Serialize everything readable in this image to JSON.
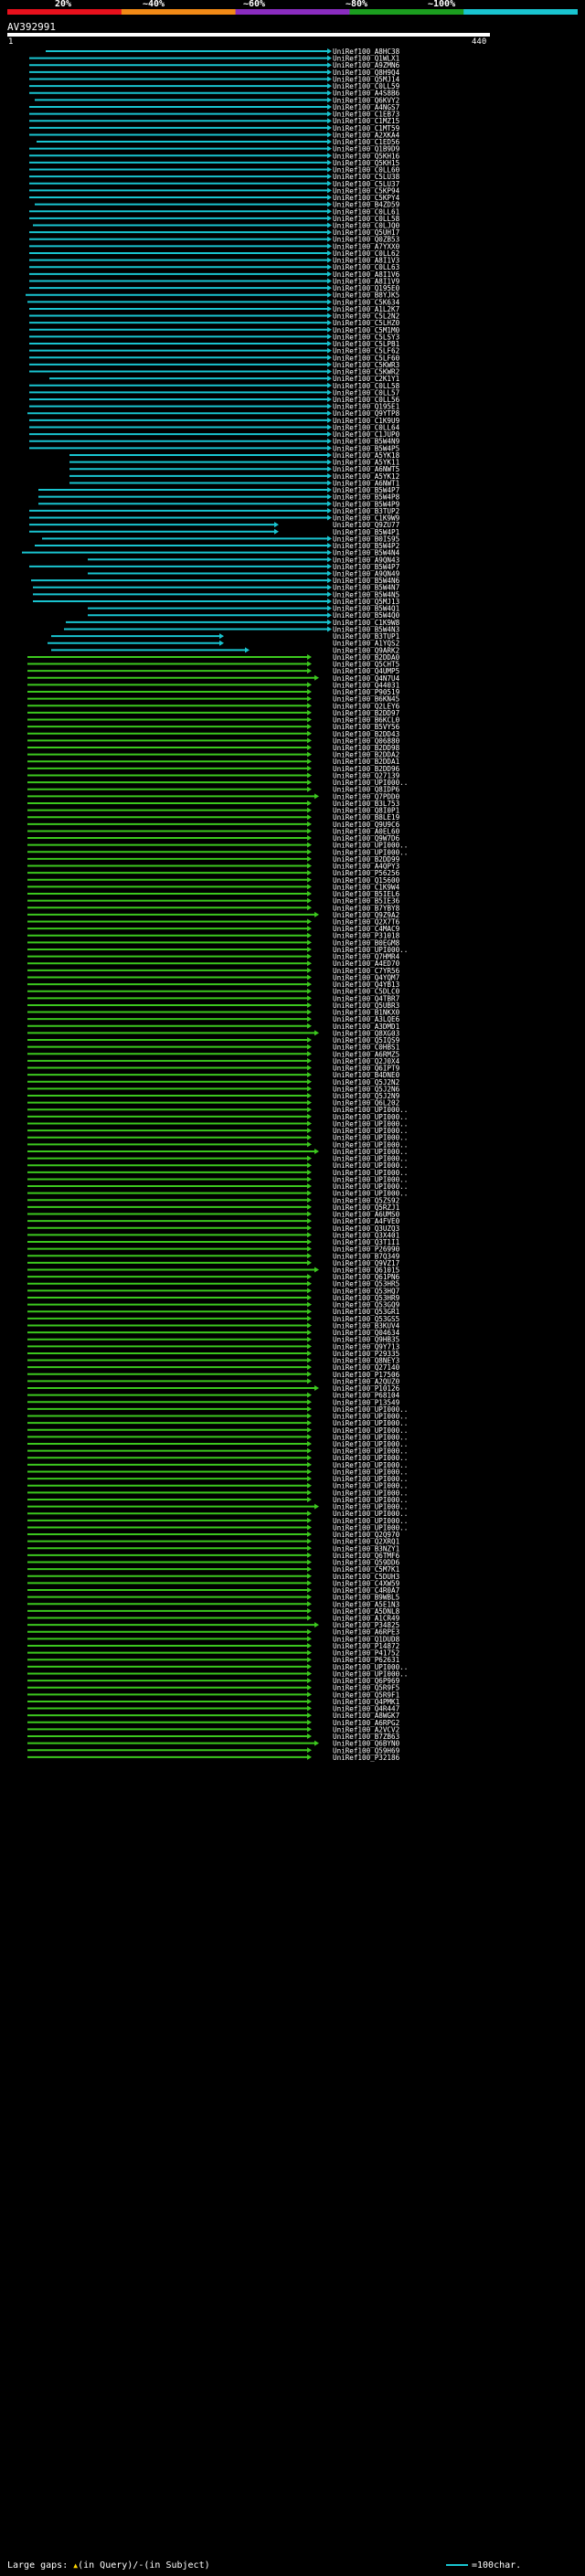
{
  "legend": {
    "labels": [
      "20%",
      "~40%",
      "~60%",
      "~80%",
      "~100%"
    ],
    "colors": [
      "#e8101c",
      "#f28a16",
      "#8a2cc0",
      "#1b9e1f",
      "#19c4d0"
    ]
  },
  "query": {
    "id": "AV392991",
    "start": "1",
    "end": "440"
  },
  "hit_colors": {
    "cyan": "#19c4d0",
    "green": "#3cc81e"
  },
  "hit_names": [
    "UniRef100_A8HC38",
    "UniRef100_Q1WLX1",
    "UniRef100_A9ZMN6",
    "UniRef100_Q8H9Q4",
    "UniRef100_Q5MJ14",
    "UniRef100_C0LL59",
    "UniRef100_A4S8B6",
    "UniRef100_Q6KVY2",
    "UniRef100_A4NGS7",
    "UniRef100_C1EB73",
    "UniRef100_C1MZ15",
    "UniRef100_C1MT59",
    "UniRef100_A2XKA4",
    "UniRef100_C1ED56",
    "UniRef100_Q1B9D9",
    "UniRef100_Q5KH16",
    "UniRef100_Q5KH15",
    "UniRef100_C0LL60",
    "UniRef100_C5LU38",
    "UniRef100_C5LU37",
    "UniRef100_C5KP94",
    "UniRef100_C5KPY4",
    "UniRef100_B4ZD59",
    "UniRef100_C0LL61",
    "UniRef100_C0LL58",
    "UniRef100_C0LJQ0",
    "UniRef100_Q5UH17",
    "UniRef100_Q0ZB53",
    "UniRef100_A7YXX0",
    "UniRef100_C0LL62",
    "UniRef100_A8I1V3",
    "UniRef100_C0LL63",
    "UniRef100_A8I1V6",
    "UniRef100_A8I1V9",
    "UniRef100_Q195E0",
    "UniRef100_B8YJK5",
    "UniRef100_C5K634",
    "UniRef100_A1L2K7",
    "UniRef100_C5L2N2",
    "UniRef100_C5LHZ0",
    "UniRef100_C5M1M0",
    "UniRef100_C5LSY3",
    "UniRef100_C5LPB1",
    "UniRef100_C5LF62",
    "UniRef100_C5LF60",
    "UniRef100_C5KWR3",
    "UniRef100_C5KWR2",
    "UniRef100_C2K1Y1",
    "UniRef100_C0LL58",
    "UniRef100_C0LL57",
    "UniRef100_C0LL56",
    "UniRef100_Q195E1",
    "UniRef100_Q9YTP8",
    "UniRef100_C1K9U9",
    "UniRef100_C0LL64",
    "UniRef100_C1JUP0",
    "UniRef100_B5W4N9",
    "UniRef100_B5W4P5",
    "UniRef100_A5YK18",
    "UniRef100_A5YK11",
    "UniRef100_A6NWT5",
    "UniRef100_A5YK12",
    "UniRef100_A6NWT1",
    "UniRef100_B5W4P7",
    "UniRef100_B5W4P8",
    "UniRef100_B5W4P9",
    "UniRef100_B3TUP2",
    "UniRef100_C1K9W9",
    "UniRef100_Q9ZU77",
    "UniRef100_B5W4P1",
    "UniRef100_B0IS95",
    "UniRef100_B5W4P2",
    "UniRef100_B5W4N4",
    "UniRef100_A9QN43",
    "UniRef100_B5W4P7",
    "UniRef100_A9QN49",
    "UniRef100_B5W4N6",
    "UniRef100_B5W4N7",
    "UniRef100_B5W4N5",
    "UniRef100_Q5MJ13",
    "UniRef100_B5W4Q1",
    "UniRef100_B5W4Q0",
    "UniRef100_C1K9W8",
    "UniRef100_B5W4N3",
    "UniRef100_B3TUP1",
    "UniRef100_A1YQS2",
    "UniRef100_Q9ARK2",
    "UniRef100_B2DDA0",
    "UniRef100_Q5CHT5",
    "UniRef100_Q4UMP5",
    "UniRef100_Q4N7U4",
    "UniRef100_Q44031",
    "UniRef100_P90519",
    "UniRef100_B6KN45",
    "UniRef100_Q2LEY6",
    "UniRef100_B2DD97",
    "UniRef100_B6KCL0",
    "UniRef100_B5VY56",
    "UniRef100_B2DD43",
    "UniRef100_Q06880",
    "UniRef100_B2DD98",
    "UniRef100_B2DDA2",
    "UniRef100_B2DDA1",
    "UniRef100_B2DD96",
    "UniRef100_Q27139",
    "UniRef100_UPI000..",
    "UniRef100_Q8IDP6",
    "UniRef100_Q7PDD0",
    "UniRef100_B3L753",
    "UniRef100_Q8I0P1",
    "UniRef100_B8LE19",
    "UniRef100_Q9U9C6",
    "UniRef100_A0EL60",
    "UniRef100_Q9W7D6",
    "UniRef100_UPI000..",
    "UniRef100_UPI000..",
    "UniRef100_B2DD99",
    "UniRef100_A4QPY3",
    "UniRef100_P56256",
    "UniRef100_Q15600",
    "UniRef100_C1K9W4",
    "UniRef100_B5IEL6",
    "UniRef100_B5IE36",
    "UniRef100_B7YBY8",
    "UniRef100_Q9Z9A2",
    "UniRef100_Q2X7T6",
    "UniRef100_C4MAC9",
    "UniRef100_P31018",
    "UniRef100_B0EGM8",
    "UniRef100_UPI000..",
    "UniRef100_Q7HMR4",
    "UniRef100_A4ED70",
    "UniRef100_C7YR56",
    "UniRef100_Q4YQM7",
    "UniRef100_Q4YB13",
    "UniRef100_C5DLC0",
    "UniRef100_Q4TBR7",
    "UniRef100_Q5UBR3",
    "UniRef100_B1NKX0",
    "UniRef100_A3LQE6",
    "UniRef100_A3DMD1",
    "UniRef100_Q8XG03",
    "UniRef100_Q5IQS9",
    "UniRef100_C0HBS1",
    "UniRef100_A6RMZ5",
    "UniRef100_Q2J0X4",
    "UniRef100_Q6IPT9",
    "UniRef100_B4DNE0",
    "UniRef100_Q5J2N2",
    "UniRef100_Q5J2N6",
    "UniRef100_Q5J2N9",
    "UniRef100_Q6L202",
    "UniRef100_UPI000..",
    "UniRef100_UPI000..",
    "UniRef100_UPI000..",
    "UniRef100_UPI000..",
    "UniRef100_UPI000..",
    "UniRef100_UPI000..",
    "UniRef100_UPI000..",
    "UniRef100_UPI000..",
    "UniRef100_UPI000..",
    "UniRef100_UPI000..",
    "UniRef100_UPI000..",
    "UniRef100_UPI000..",
    "UniRef100_UPI000..",
    "UniRef100_Q5ZS92",
    "UniRef100_Q5RZJ1",
    "UniRef100_A6UMS0",
    "UniRef100_A4FVE0",
    "UniRef100_Q3UZQ3",
    "UniRef100_Q3X401",
    "UniRef100_Q3T1I1",
    "UniRef100_P26990",
    "UniRef100_B7Q349",
    "UniRef100_Q9VZ17",
    "UniRef100_Q61015",
    "UniRef100_Q61PN6",
    "UniRef100_Q53HR5",
    "UniRef100_Q53HQ7",
    "UniRef100_Q53HR9",
    "UniRef100_Q53GQ9",
    "UniRef100_Q53GR1",
    "UniRef100_Q53GS5",
    "UniRef100_B3KUV4",
    "UniRef100_Q04634",
    "UniRef100_Q9HB35",
    "UniRef100_Q9Y713",
    "UniRef100_P29335",
    "UniRef100_Q8NEY3",
    "UniRef100_Q27140",
    "UniRef100_P17506",
    "UniRef100_A2QUZ0",
    "UniRef100_P10126",
    "UniRef100_P68104",
    "UniRef100_P13549",
    "UniRef100_UPI000..",
    "UniRef100_UPI000..",
    "UniRef100_UPI000..",
    "UniRef100_UPI000..",
    "UniRef100_UPI000..",
    "UniRef100_UPI000..",
    "UniRef100_UPI000..",
    "UniRef100_UPI000..",
    "UniRef100_UPI000..",
    "UniRef100_UPI000..",
    "UniRef100_UPI000..",
    "UniRef100_UPI000..",
    "UniRef100_UPI000..",
    "UniRef100_UPI000..",
    "UniRef100_UPI000..",
    "UniRef100_UPI000..",
    "UniRef100_UPI000..",
    "UniRef100_UPI000..",
    "UniRef100_Q2Q970",
    "UniRef100_Q2XRQ1",
    "UniRef100_B3NZY1",
    "UniRef100_Q6TMF6",
    "UniRef100_Q59DD6",
    "UniRef100_C5M7K1",
    "UniRef100_C5DUH3",
    "UniRef100_C4XW59",
    "UniRef100_C4R0A7",
    "UniRef100_B9WBL5",
    "UniRef100_A5E1N3",
    "UniRef100_A5DNL8",
    "UniRef100_A1CR49",
    "UniRef100_P34825",
    "UniRef100_A6RPE3",
    "UniRef100_Q1DUD8",
    "UniRef100_P14872",
    "UniRef100_P41752",
    "UniRef100_P62631",
    "UniRef100_UPI000..",
    "UniRef100_UPI000..",
    "UniRef100_Q6P969",
    "UniRef100_Q5R9F5",
    "UniRef100_Q5R9F1",
    "UniRef100_Q4PMK1",
    "UniRef100_Q4R447",
    "UniRef100_A8WGK7",
    "UniRef100_A6RPG2",
    "UniRef100_A2VCV2",
    "UniRef100_B7ZB63",
    "UniRef100_Q6BYN0",
    "UniRef100_Q59H69",
    "UniRef100_P32186"
  ],
  "footer": {
    "gaps_label": "Large gaps:",
    "gaps_query_mark": "▲",
    "gaps_query_text": "(in Query)/",
    "gaps_subject_mark": "-",
    "gaps_subject_text": "(in Subject)",
    "scale_text": "=100char."
  }
}
